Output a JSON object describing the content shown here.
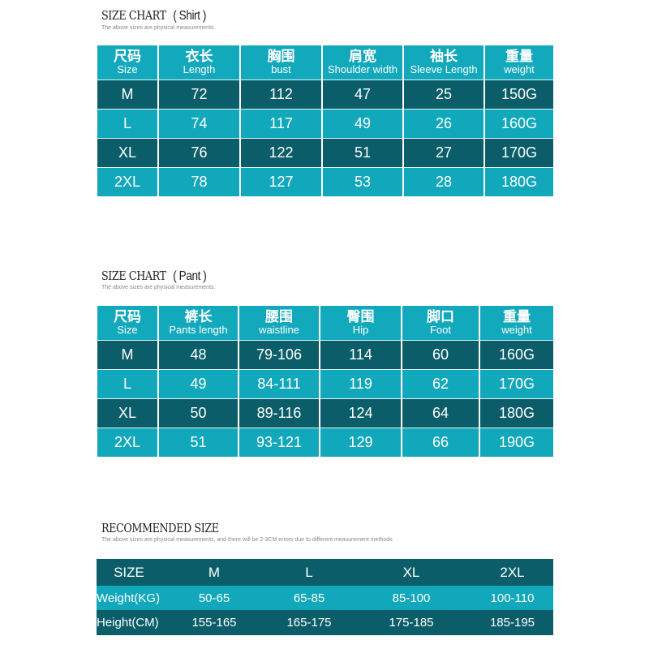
{
  "shirt": {
    "title": "SIZE CHART",
    "subtitle": "( Shirt )",
    "note": "The above sizes are physical measurements.",
    "headers": [
      {
        "zh": "尺码",
        "en": "Size"
      },
      {
        "zh": "衣长",
        "en": "Length"
      },
      {
        "zh": "胸围",
        "en": "bust"
      },
      {
        "zh": "肩宽",
        "en": "Shoulder width"
      },
      {
        "zh": "袖长",
        "en": "Sleeve Length"
      },
      {
        "zh": "重量",
        "en": "weight"
      }
    ],
    "rows": [
      [
        "M",
        "72",
        "112",
        "47",
        "25",
        "150G"
      ],
      [
        "L",
        "74",
        "117",
        "49",
        "26",
        "160G"
      ],
      [
        "XL",
        "76",
        "122",
        "51",
        "27",
        "170G"
      ],
      [
        "2XL",
        "78",
        "127",
        "53",
        "28",
        "180G"
      ]
    ]
  },
  "pant": {
    "title": "SIZE CHART",
    "subtitle": "( Pant )",
    "note": "The above sizes are physical measurements.",
    "headers": [
      {
        "zh": "尺码",
        "en": "Size"
      },
      {
        "zh": "裤长",
        "en": "Pants length"
      },
      {
        "zh": "腰围",
        "en": "waistline"
      },
      {
        "zh": "臀围",
        "en": "Hip"
      },
      {
        "zh": "脚口",
        "en": "Foot"
      },
      {
        "zh": "重量",
        "en": "weight"
      }
    ],
    "rows": [
      [
        "M",
        "48",
        "79-106",
        "114",
        "60",
        "160G"
      ],
      [
        "L",
        "49",
        "84-111",
        "119",
        "62",
        "170G"
      ],
      [
        "XL",
        "50",
        "89-116",
        "124",
        "64",
        "180G"
      ],
      [
        "2XL",
        "51",
        "93-121",
        "129",
        "66",
        "190G"
      ]
    ]
  },
  "recommended": {
    "title": "RECOMMENDED SIZE",
    "note": "The above sizes are physical measurements, and there will be 2-3CM errors due to different measurement methods.",
    "rows": [
      [
        "SIZE",
        "M",
        "L",
        "XL",
        "2XL"
      ],
      [
        "Weight(KG)",
        "50-65",
        "65-85",
        "85-100",
        "100-110"
      ],
      [
        "Height(CM)",
        "155-165",
        "165-175",
        "175-185",
        "185-195"
      ]
    ]
  },
  "colors": {
    "light_teal": "#12a8bb",
    "dark_teal": "#0b5e69"
  }
}
